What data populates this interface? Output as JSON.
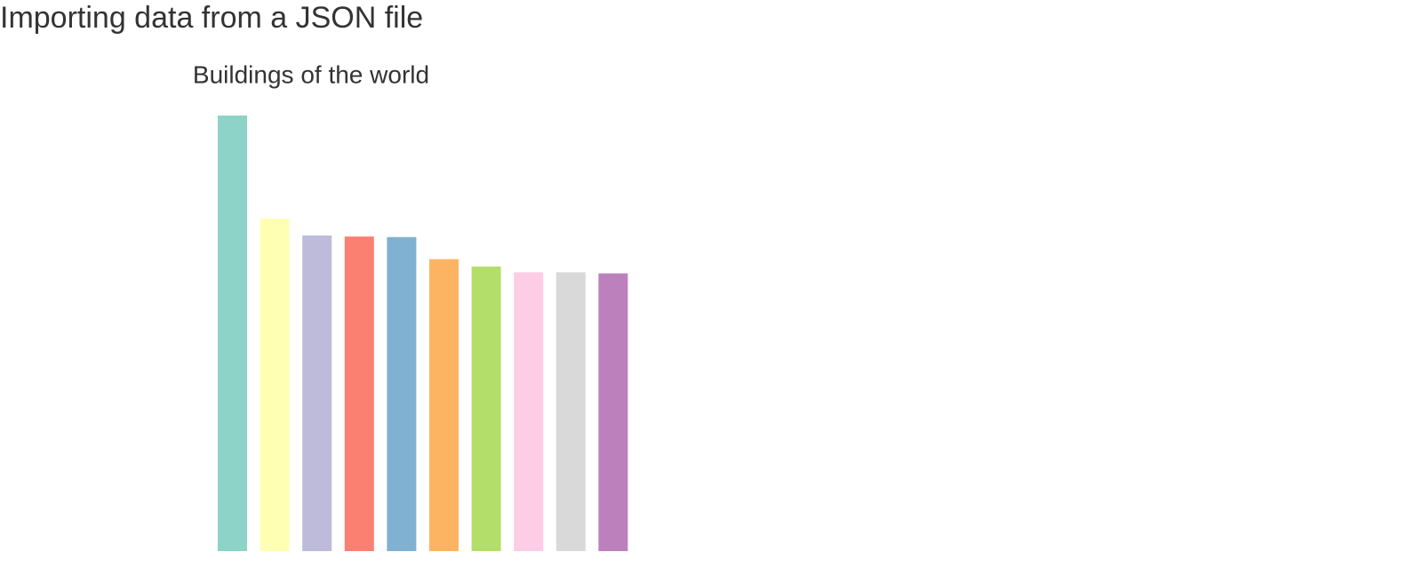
{
  "header": {
    "title": "Importing data from a JSON file"
  },
  "chart_data": {
    "type": "bar",
    "title": "Buildings of the world",
    "values": [
      828,
      632,
      600,
      598,
      597,
      555,
      541,
      530,
      530,
      528
    ],
    "colors": [
      "#8dd3c7",
      "#ffffb3",
      "#bebada",
      "#fb8072",
      "#80b1d3",
      "#fdb462",
      "#b3de69",
      "#fccde5",
      "#d9d9d9",
      "#bc80bd"
    ]
  }
}
